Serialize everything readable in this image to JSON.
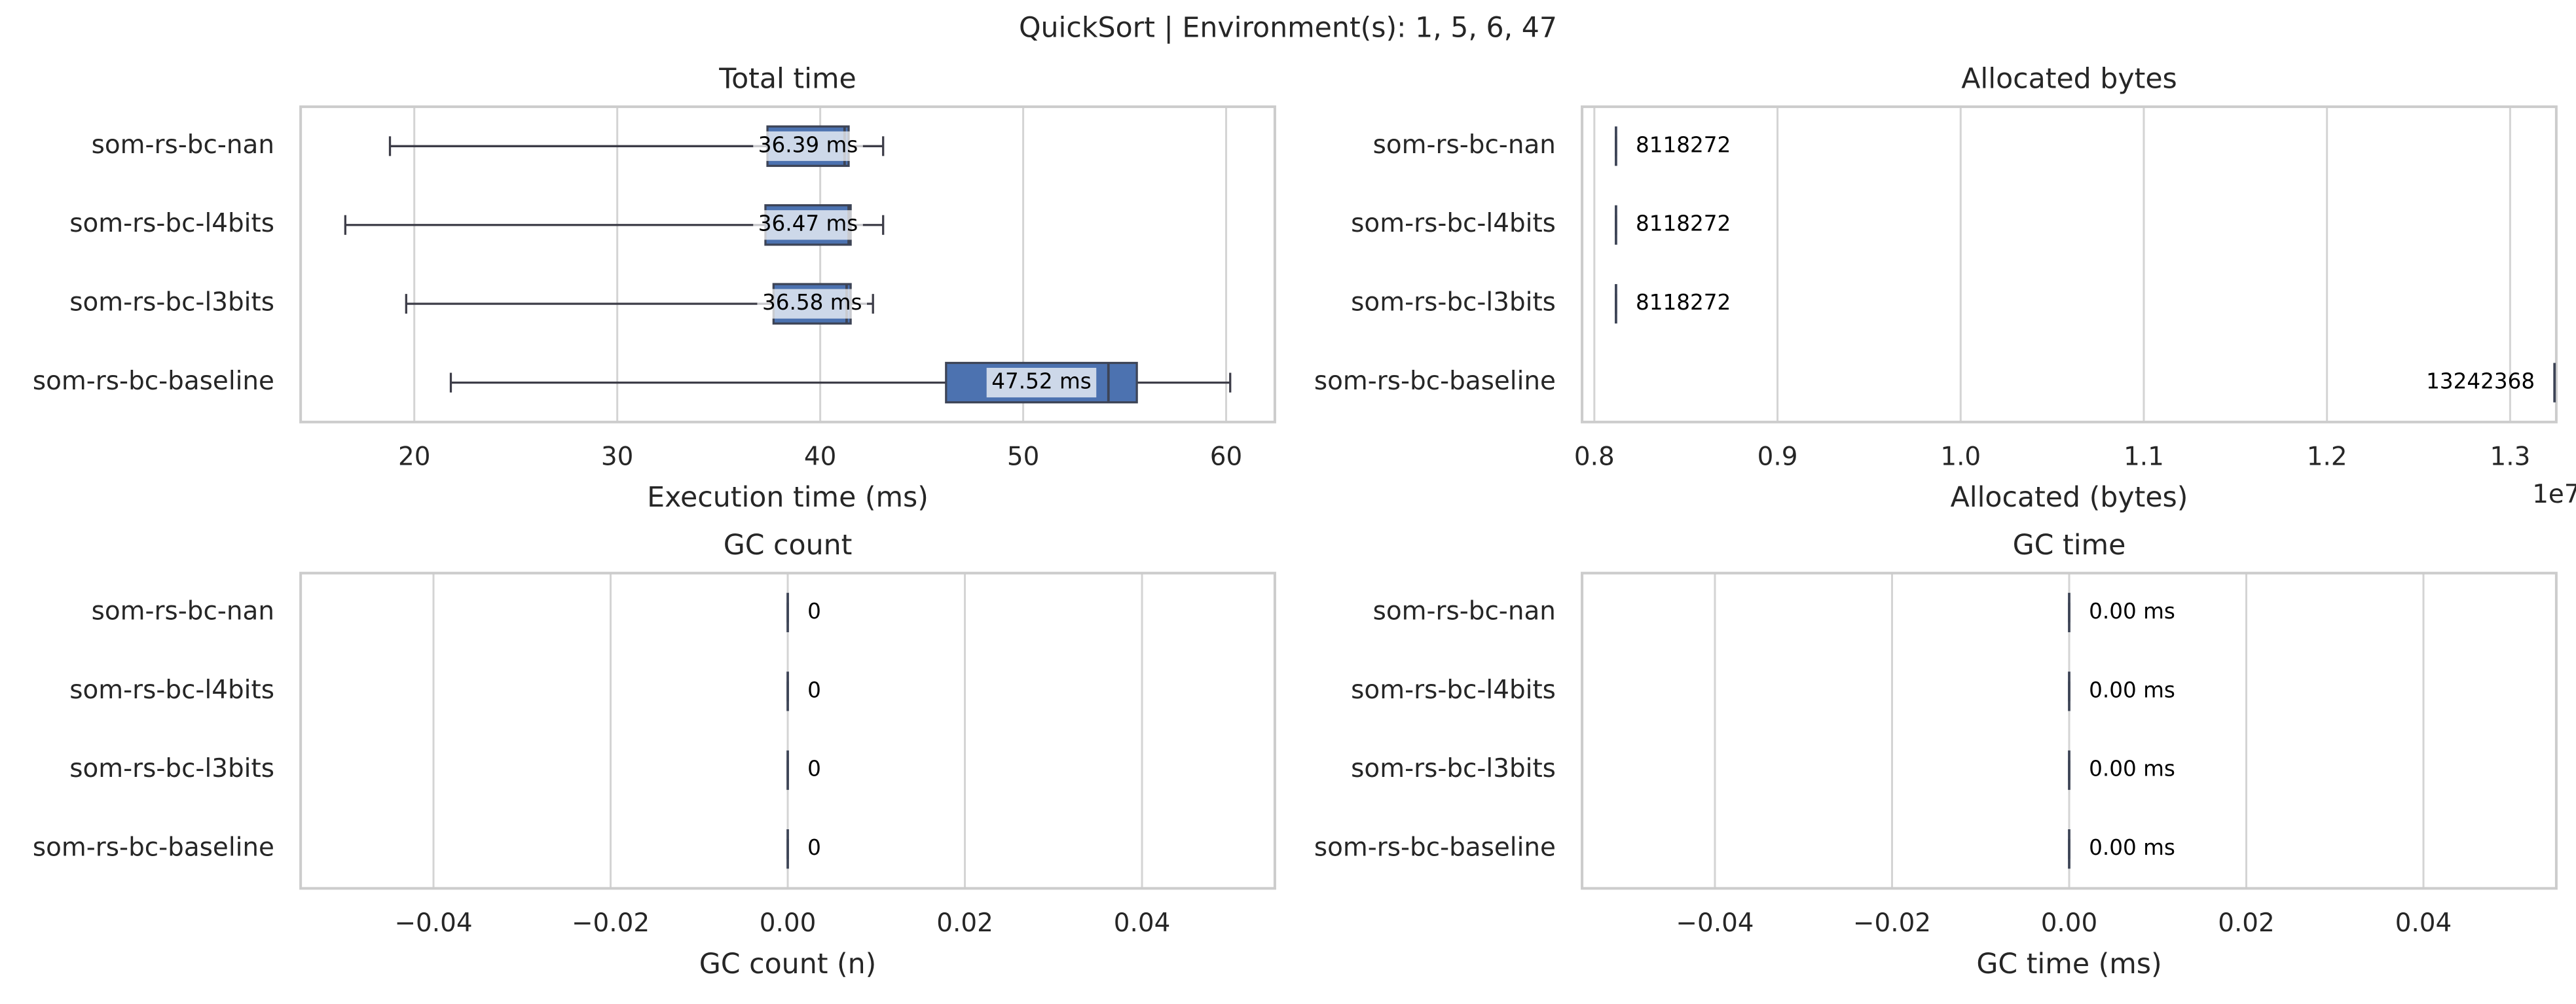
{
  "title": "QuickSort | Environment(s): 1, 5, 6, 47",
  "chart_data": [
    {
      "type": "box",
      "title": "Total time",
      "xlabel": "Execution time (ms)",
      "categories": [
        "som-rs-bc-nan",
        "som-rs-bc-l4bits",
        "som-rs-bc-l3bits",
        "som-rs-bc-baseline"
      ],
      "color": "#4c72b0",
      "grid": true,
      "xlim": [
        14.4,
        62.4
      ],
      "xticks": [
        20,
        30,
        40,
        50,
        60
      ],
      "boxes": [
        {
          "whislo": 18.8,
          "q1": 37.4,
          "med": 41.2,
          "q3": 41.4,
          "whishi": 43.1
        },
        {
          "whislo": 16.6,
          "q1": 37.3,
          "med": 41.4,
          "q3": 41.5,
          "whishi": 43.1
        },
        {
          "whislo": 19.6,
          "q1": 37.7,
          "med": 41.3,
          "q3": 41.5,
          "whishi": 42.6
        },
        {
          "whislo": 21.8,
          "q1": 46.2,
          "med": 54.2,
          "q3": 55.6,
          "whishi": 60.2
        }
      ],
      "values": [
        36.39,
        36.47,
        36.58,
        47.52
      ],
      "value_labels": [
        "36.39 ms",
        "36.47 ms",
        "36.58 ms",
        "47.52 ms"
      ]
    },
    {
      "type": "box",
      "title": "Allocated bytes",
      "xlabel": "Allocated (bytes)",
      "offset_text": "1e7",
      "categories": [
        "som-rs-bc-nan",
        "som-rs-bc-l4bits",
        "som-rs-bc-l3bits",
        "som-rs-bc-baseline"
      ],
      "color": "#4c72b0",
      "grid": true,
      "xlim": [
        7933000,
        13252000
      ],
      "xticks": [
        {
          "value": 8000000,
          "label": "0.8"
        },
        {
          "value": 9000000,
          "label": "0.9"
        },
        {
          "value": 10000000,
          "label": "1.0"
        },
        {
          "value": 11000000,
          "label": "1.1"
        },
        {
          "value": 12000000,
          "label": "1.2"
        },
        {
          "value": 13000000,
          "label": "1.3"
        }
      ],
      "boxes": [
        {
          "whislo": 8118272,
          "q1": 8118272,
          "med": 8118272,
          "q3": 8118272,
          "whishi": 8118272
        },
        {
          "whislo": 8118272,
          "q1": 8118272,
          "med": 8118272,
          "q3": 8118272,
          "whishi": 8118272
        },
        {
          "whislo": 8118272,
          "q1": 8118272,
          "med": 8118272,
          "q3": 8118272,
          "whishi": 8118272
        },
        {
          "whislo": 13242368,
          "q1": 13242368,
          "med": 13242368,
          "q3": 13242368,
          "whishi": 13242368
        }
      ],
      "values": [
        8118272,
        8118272,
        8118272,
        13242368
      ]
    },
    {
      "type": "box",
      "title": "GC count",
      "xlabel": "GC count (n)",
      "categories": [
        "som-rs-bc-nan",
        "som-rs-bc-l4bits",
        "som-rs-bc-l3bits",
        "som-rs-bc-baseline"
      ],
      "color": "#4c72b0",
      "grid": true,
      "xlim": [
        -0.055,
        0.055
      ],
      "xticks": [
        {
          "value": -0.04,
          "label": "−0.04"
        },
        {
          "value": -0.02,
          "label": "−0.02"
        },
        {
          "value": 0,
          "label": "0.00"
        },
        {
          "value": 0.02,
          "label": "0.02"
        },
        {
          "value": 0.04,
          "label": "0.04"
        }
      ],
      "boxes": [
        {
          "whislo": 0,
          "q1": 0,
          "med": 0,
          "q3": 0,
          "whishi": 0
        },
        {
          "whislo": 0,
          "q1": 0,
          "med": 0,
          "q3": 0,
          "whishi": 0
        },
        {
          "whislo": 0,
          "q1": 0,
          "med": 0,
          "q3": 0,
          "whishi": 0
        },
        {
          "whislo": 0,
          "q1": 0,
          "med": 0,
          "q3": 0,
          "whishi": 0
        }
      ],
      "values": [
        0,
        0,
        0,
        0
      ]
    },
    {
      "type": "box",
      "title": "GC time",
      "xlabel": "GC time (ms)",
      "categories": [
        "som-rs-bc-nan",
        "som-rs-bc-l4bits",
        "som-rs-bc-l3bits",
        "som-rs-bc-baseline"
      ],
      "color": "#4c72b0",
      "grid": true,
      "xlim": [
        -0.055,
        0.055
      ],
      "xticks": [
        {
          "value": -0.04,
          "label": "−0.04"
        },
        {
          "value": -0.02,
          "label": "−0.02"
        },
        {
          "value": 0,
          "label": "0.00"
        },
        {
          "value": 0.02,
          "label": "0.02"
        },
        {
          "value": 0.04,
          "label": "0.04"
        }
      ],
      "boxes": [
        {
          "whislo": 0,
          "q1": 0,
          "med": 0,
          "q3": 0,
          "whishi": 0
        },
        {
          "whislo": 0,
          "q1": 0,
          "med": 0,
          "q3": 0,
          "whishi": 0
        },
        {
          "whislo": 0,
          "q1": 0,
          "med": 0,
          "q3": 0,
          "whishi": 0
        },
        {
          "whislo": 0,
          "q1": 0,
          "med": 0,
          "q3": 0,
          "whishi": 0
        }
      ],
      "values": [
        0,
        0,
        0,
        0
      ],
      "value_labels": [
        "0.00 ms",
        "0.00 ms",
        "0.00 ms",
        "0.00 ms"
      ]
    }
  ]
}
